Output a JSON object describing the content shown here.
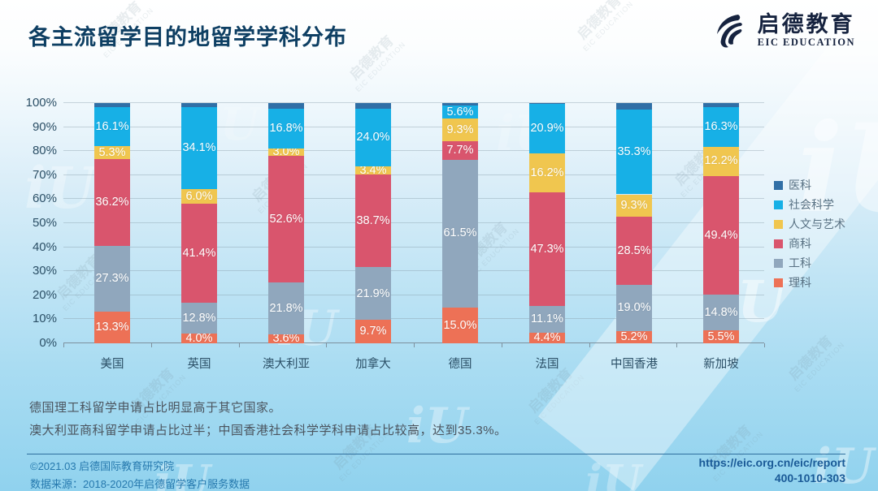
{
  "header": {
    "title": "各主流留学目的地留学学科分布",
    "logo_cn": "启德教育",
    "logo_en": "EIC EDUCATION"
  },
  "chart_data": {
    "type": "bar",
    "stacked": true,
    "unit": "%",
    "title": "各主流留学目的地留学学科分布",
    "categories": [
      "美国",
      "英国",
      "澳大利亚",
      "加拿大",
      "德国",
      "法国",
      "中国香港",
      "新加坡"
    ],
    "series": [
      {
        "name": "理科",
        "color": "#ed7156",
        "values": [
          13.3,
          4.0,
          3.6,
          9.7,
          15.0,
          4.4,
          5.2,
          5.5
        ]
      },
      {
        "name": "工科",
        "color": "#90a7bd",
        "values": [
          27.3,
          12.8,
          21.8,
          21.9,
          61.5,
          11.1,
          19.0,
          14.8
        ]
      },
      {
        "name": "商科",
        "color": "#d9556d",
        "values": [
          36.2,
          41.4,
          52.6,
          38.7,
          7.7,
          47.3,
          28.5,
          49.4
        ]
      },
      {
        "name": "人文与艺术",
        "color": "#f0c64f",
        "values": [
          5.3,
          6.0,
          3.0,
          3.4,
          9.3,
          16.2,
          9.3,
          12.2
        ]
      },
      {
        "name": "社会科学",
        "color": "#17b0e6",
        "values": [
          16.1,
          34.1,
          16.8,
          24.0,
          5.6,
          20.9,
          35.3,
          16.3
        ]
      },
      {
        "name": "医科",
        "color": "#306fa6",
        "values": [
          1.8,
          1.7,
          2.2,
          2.3,
          0.9,
          0.1,
          2.7,
          1.8
        ],
        "labels_hidden": true
      }
    ],
    "ylim": [
      0,
      100
    ],
    "y_ticks": [
      "0%",
      "10%",
      "20%",
      "30%",
      "40%",
      "50%",
      "60%",
      "70%",
      "80%",
      "90%",
      "100%"
    ],
    "legend_position": "right",
    "legend_order_top_to_bottom": [
      "医科",
      "社会科学",
      "人文与艺术",
      "商科",
      "工科",
      "理科"
    ],
    "grid": true
  },
  "annotations": {
    "line1": "德国理工科留学申请占比明显高于其它国家。",
    "line2": "澳大利亚商科留学申请占比过半；中国香港社会科学学科申请占比较高，达到35.3%。"
  },
  "footer": {
    "copyright": "©2021.03 启德国际教育研究院",
    "source": "数据来源：2018-2020年启德留学客户服务数据",
    "url": "https://eic.org.cn/eic/report",
    "phone": "400-1010-303"
  },
  "watermark": {
    "cn": "启德教育",
    "en": "EIC EDUCATION",
    "mark": "iU"
  }
}
